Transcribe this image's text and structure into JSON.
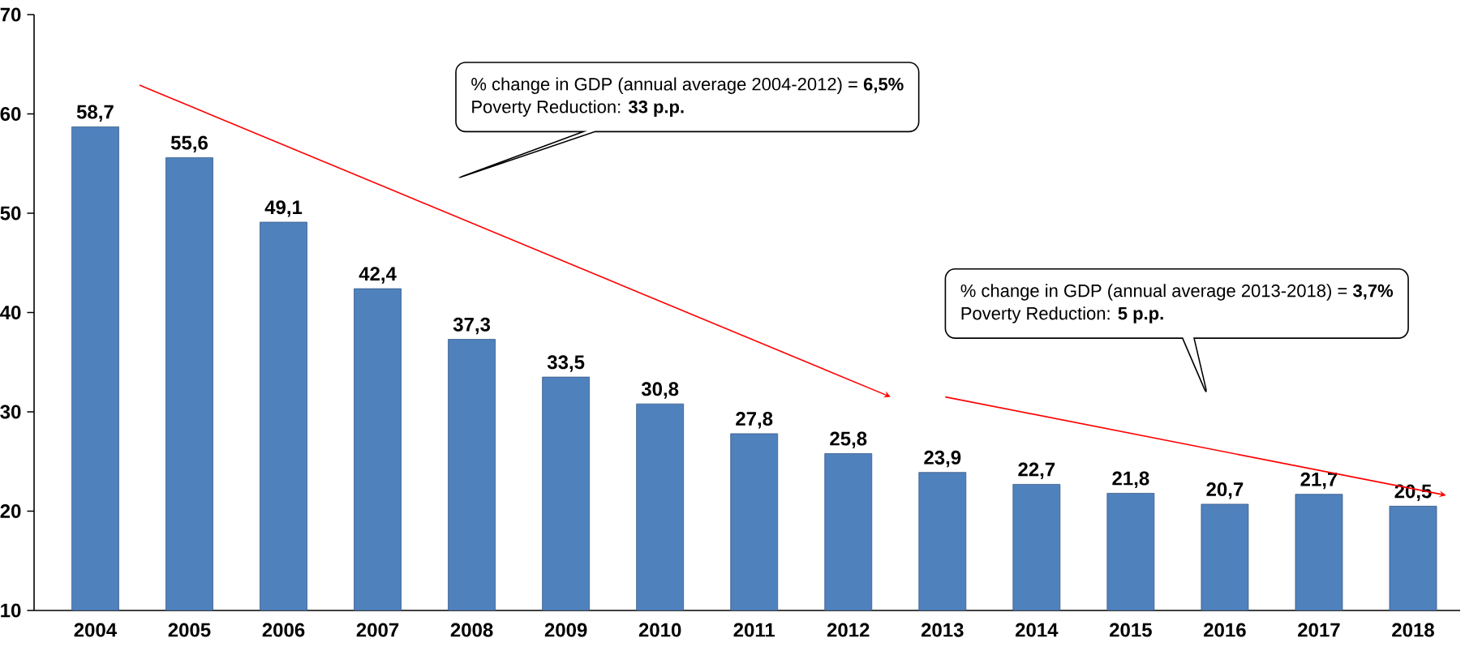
{
  "chart_data": {
    "type": "bar",
    "categories": [
      "2004",
      "2005",
      "2006",
      "2007",
      "2008",
      "2009",
      "2010",
      "2011",
      "2012",
      "2013",
      "2014",
      "2015",
      "2016",
      "2017",
      "2018"
    ],
    "values": [
      58.7,
      55.6,
      49.1,
      42.4,
      37.3,
      33.5,
      30.8,
      27.8,
      25.8,
      23.9,
      22.7,
      21.8,
      20.7,
      21.7,
      20.5
    ],
    "value_labels": [
      "58,7",
      "55,6",
      "49,1",
      "42,4",
      "37,3",
      "33,5",
      "30,8",
      "27,8",
      "25,8",
      "23,9",
      "22,7",
      "21,8",
      "20,7",
      "21,7",
      "20,5"
    ],
    "color": "#4f81bd",
    "ylim": [
      10,
      70
    ],
    "yticks": [
      10,
      20,
      30,
      40,
      50,
      60,
      70
    ],
    "grid": false,
    "annotations": [
      "% change in GDP (annual average 2004-2012) = **6,5%**",
      "Poverty Reduction: **33 p.p.**",
      "% change in GDP (annual average 2013-2018) = **3,7%**",
      "Poverty Reduction: **5 p.p.**"
    ]
  }
}
